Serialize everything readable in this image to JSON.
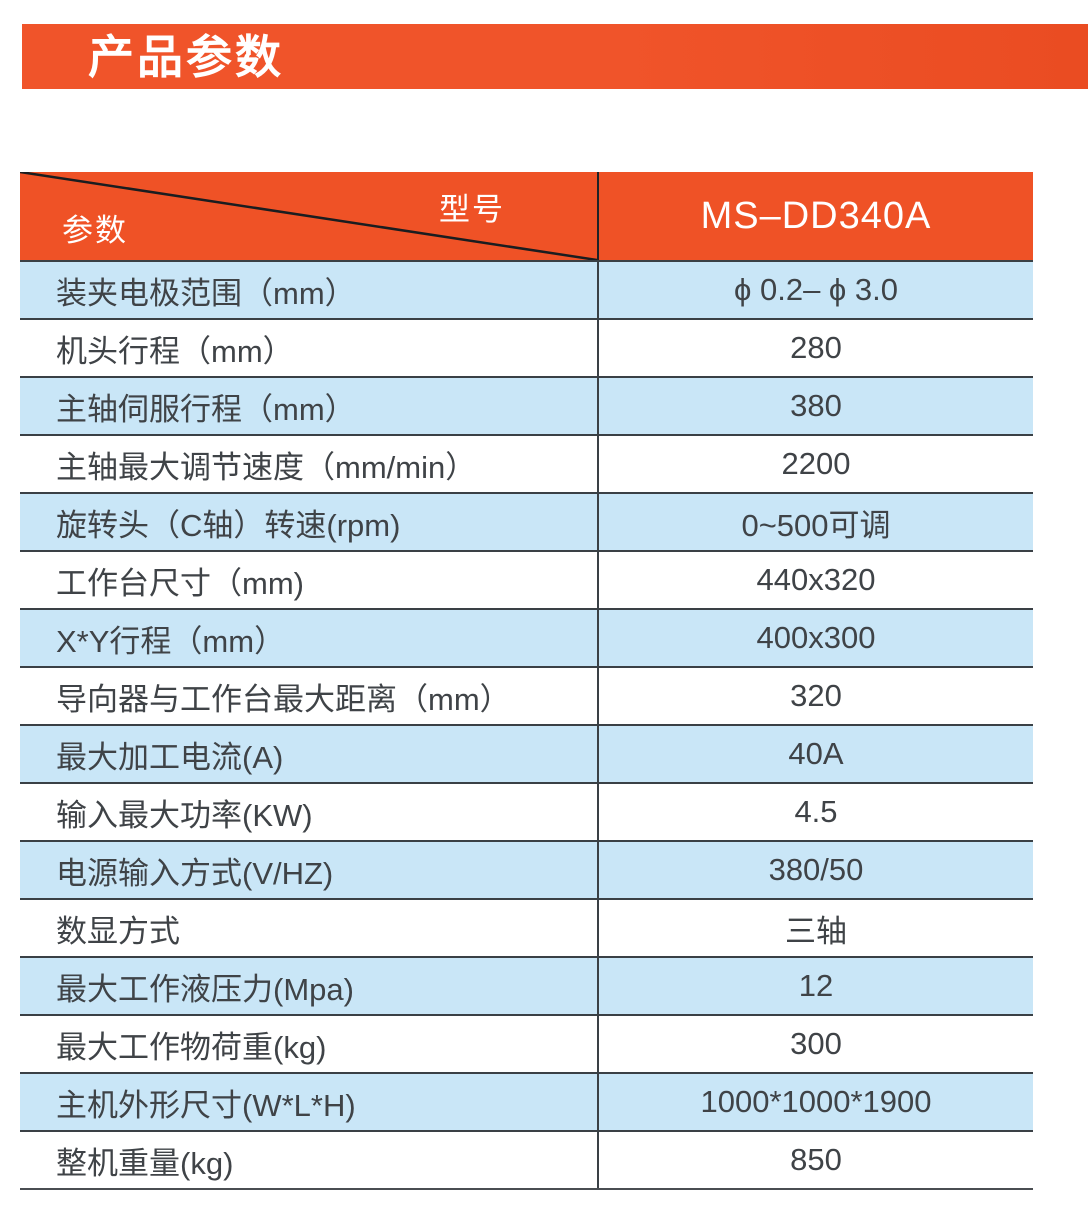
{
  "page_title": {
    "text": "产品参数"
  },
  "colors": {
    "accent": "#f0542a",
    "accent_dark": "#ea4c22",
    "header_orange": "#ef5226",
    "row_blue": "#c9e6f7",
    "grid_line": "#3a4045",
    "text": "#3f4347"
  },
  "table": {
    "header": {
      "corner_top_label": "型号",
      "corner_bottom_label": "参数",
      "model": "MS–DD340A"
    },
    "rows": [
      {
        "label": "装夹电极范围（mm）",
        "value": "ϕ 0.2– ϕ 3.0"
      },
      {
        "label": "机头行程（mm）",
        "value": "280"
      },
      {
        "label": "主轴伺服行程（mm）",
        "value": "380"
      },
      {
        "label": "主轴最大调节速度（mm/min）",
        "value": "2200"
      },
      {
        "label": "旋转头（C轴）转速(rpm)",
        "value": "0~500可调"
      },
      {
        "label": "工作台尺寸（mm)",
        "value": "440x320"
      },
      {
        "label": "X*Y行程（mm）",
        "value": "400x300"
      },
      {
        "label": "导向器与工作台最大距离（mm）",
        "value": "320"
      },
      {
        "label": "最大加工电流(A)",
        "value": "40A"
      },
      {
        "label": "输入最大功率(KW)",
        "value": "4.5"
      },
      {
        "label": "电源输入方式(V/HZ)",
        "value": "380/50"
      },
      {
        "label": "数显方式",
        "value": "三轴"
      },
      {
        "label": "最大工作液压力(Mpa)",
        "value": "12"
      },
      {
        "label": "最大工作物荷重(kg)",
        "value": "300"
      },
      {
        "label": "主机外形尺寸(W*L*H)",
        "value": "1000*1000*1900"
      },
      {
        "label": "整机重量(kg)",
        "value": "850"
      }
    ]
  }
}
